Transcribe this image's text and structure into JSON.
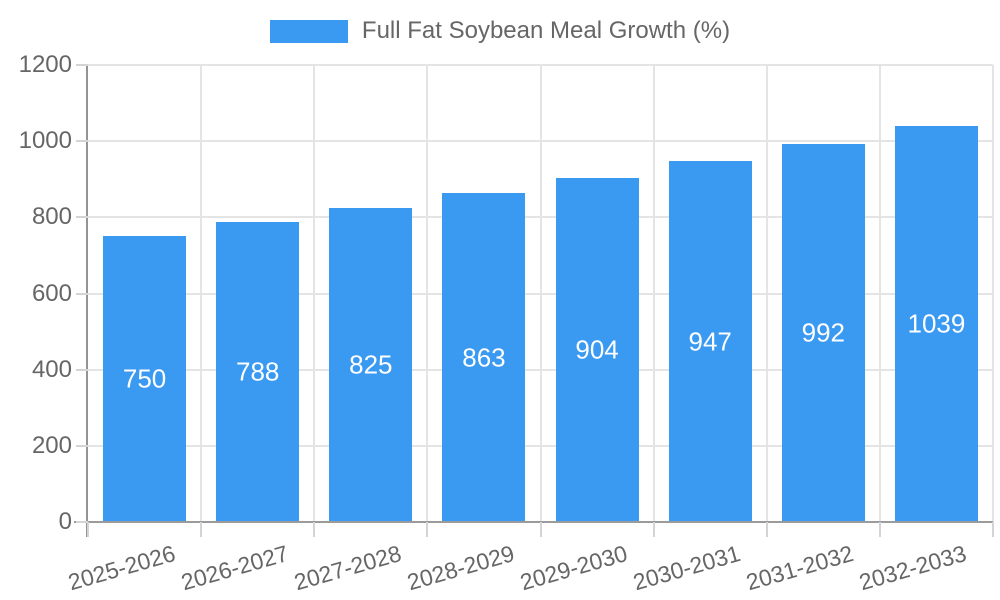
{
  "chart_data": {
    "type": "bar",
    "title": "Full Fat Soybean Meal Growth (%)",
    "categories": [
      "2025-2026",
      "2026-2027",
      "2027-2028",
      "2028-2029",
      "2029-2030",
      "2030-2031",
      "2031-2032",
      "2032-2033"
    ],
    "values": [
      750,
      788,
      825,
      863,
      904,
      947,
      992,
      1039
    ],
    "xlabel": "",
    "ylabel": "",
    "ylim": [
      0,
      1200
    ],
    "yticks": [
      0,
      200,
      400,
      600,
      800,
      1000,
      1200
    ],
    "grid": true,
    "legend_position": "top-center",
    "bar_color": "#3A99F0",
    "bar_label_color": "#FFFFFF",
    "axis_text_color": "#666666",
    "gridline_color": "#E4E4E4",
    "axis_line_color": "#9B9B9B"
  }
}
